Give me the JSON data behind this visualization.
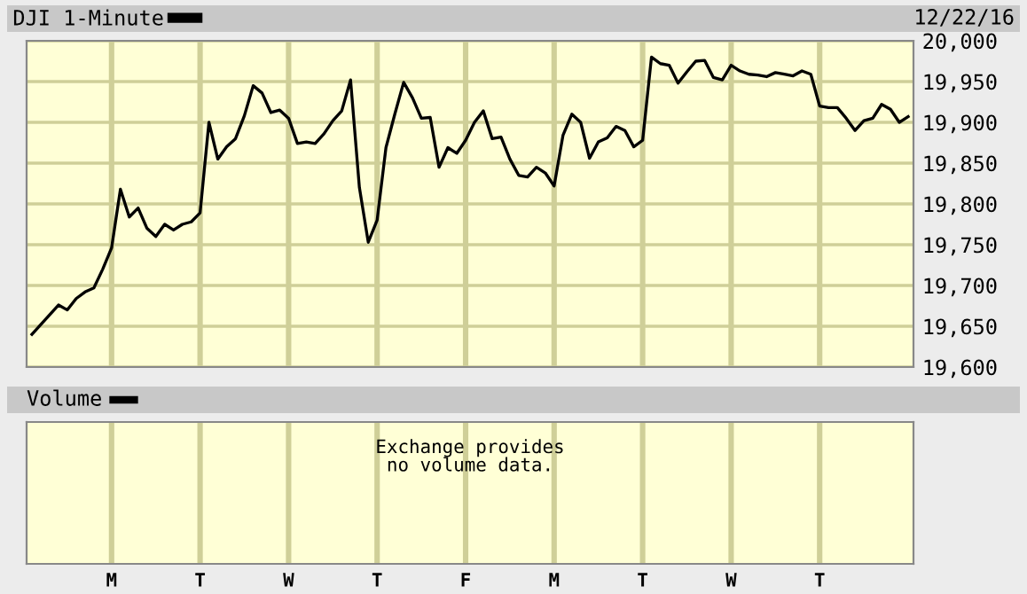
{
  "chart_data": [
    {
      "type": "line",
      "subtitle": "12/22/16",
      "legend": "top left",
      "grid": true,
      "tick_labels": "y",
      "line_style": "solid",
      "marker": "none",
      "categories": [
        null,
        null,
        null,
        null,
        null,
        null,
        null,
        null,
        null,
        "M",
        null,
        null,
        null,
        null,
        null,
        null,
        null,
        null,
        null,
        "T",
        null,
        null,
        null,
        null,
        null,
        null,
        null,
        null,
        null,
        "W",
        null,
        null,
        null,
        null,
        null,
        null,
        null,
        null,
        null,
        "T",
        null,
        null,
        null,
        null,
        null,
        null,
        null,
        null,
        null,
        "F",
        null,
        null,
        null,
        null,
        null,
        null,
        null,
        null,
        null,
        "M",
        null,
        null,
        null,
        null,
        null,
        null,
        null,
        null,
        null,
        "T",
        null,
        null,
        null,
        null,
        null,
        null,
        null,
        null,
        null,
        "W",
        null,
        null,
        null,
        null,
        null,
        null,
        null,
        null,
        null,
        "T",
        null,
        null,
        null,
        null,
        null,
        null,
        null,
        null,
        null,
        null
      ],
      "ylim": [
        19600,
        20000
      ],
      "yticks": [
        {
          "value": 19600,
          "label": "19,600"
        },
        {
          "value": 19650,
          "label": "19,650"
        },
        {
          "value": 19700,
          "label": "19,700"
        },
        {
          "value": 19750,
          "label": "19,750"
        },
        {
          "value": 19800,
          "label": "19,800"
        },
        {
          "value": 19850,
          "label": "19,850"
        },
        {
          "value": 19900,
          "label": "19,900"
        },
        {
          "value": 19950,
          "label": "19,950"
        },
        {
          "value": 20000,
          "label": "20,000"
        }
      ],
      "series": [
        {
          "name": "DJI 1-Minute",
          "color": "#000000",
          "values": [
            19640,
            19652,
            19664,
            19676,
            19670,
            19684,
            19692,
            19697,
            19720,
            19746,
            19818,
            19784,
            19795,
            19770,
            19760,
            19775,
            19768,
            19775,
            19778,
            19789,
            19900,
            19855,
            19870,
            19880,
            19908,
            19945,
            19936,
            19912,
            19915,
            19905,
            19874,
            19876,
            19874,
            19886,
            19902,
            19914,
            19952,
            19820,
            19753,
            19780,
            19869,
            19910,
            19949,
            19930,
            19905,
            19906,
            19845,
            19869,
            19862,
            19878,
            19900,
            19914,
            19880,
            19882,
            19855,
            19835,
            19833,
            19845,
            19838,
            19822,
            19884,
            19910,
            19900,
            19856,
            19876,
            19881,
            19895,
            19890,
            19870,
            19878,
            19980,
            19972,
            19970,
            19948,
            19962,
            19975,
            19976,
            19955,
            19952,
            19970,
            19963,
            19959,
            19958,
            19956,
            19961,
            19959,
            19957,
            19963,
            19959,
            19920,
            19918,
            19918,
            19905,
            19890,
            19902,
            19905,
            19922,
            19916,
            19900,
            19907
          ]
        }
      ]
    },
    {
      "type": "other",
      "title": "Volume",
      "annotations": [
        "Exchange provides\nno volume data."
      ]
    }
  ]
}
